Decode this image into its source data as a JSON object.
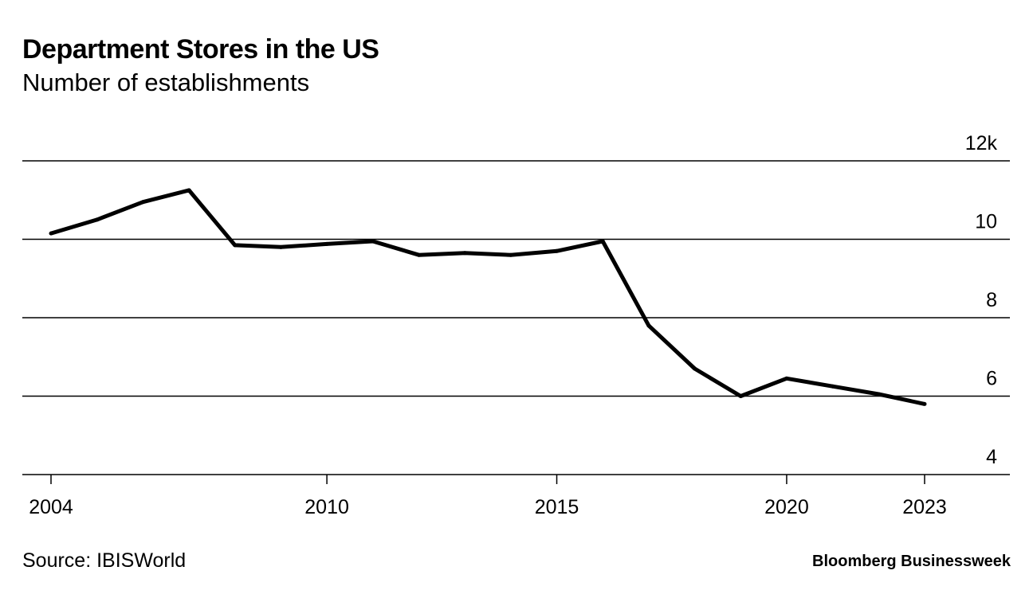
{
  "chart_data": {
    "type": "line",
    "title": "Department Stores in the US",
    "subtitle": "Number of establishments",
    "xlabel": "",
    "ylabel": "",
    "x": [
      2004,
      2005,
      2006,
      2007,
      2008,
      2009,
      2010,
      2011,
      2012,
      2013,
      2014,
      2015,
      2016,
      2017,
      2018,
      2019,
      2020,
      2021,
      2022,
      2023
    ],
    "series": [
      {
        "name": "Number of establishments",
        "values": [
          10.15,
          10.5,
          10.95,
          11.25,
          9.85,
          9.8,
          9.88,
          9.95,
          9.6,
          9.65,
          9.6,
          9.7,
          9.95,
          7.8,
          6.7,
          6.0,
          6.45,
          6.25,
          6.05,
          5.8
        ]
      }
    ],
    "ylim": [
      4,
      12
    ],
    "yticks": [
      4,
      6,
      8,
      10,
      12
    ],
    "ytick_labels": [
      "4",
      "6",
      "8",
      "10",
      "12k"
    ],
    "xticks": [
      2004,
      2010,
      2015,
      2020,
      2023
    ],
    "xtick_labels": [
      "2004",
      "2010",
      "2015",
      "2020",
      "2023"
    ],
    "grid": true
  },
  "footer": {
    "source": "Source: IBISWorld",
    "brand": "Bloomberg Businessweek"
  },
  "colors": {
    "line": "#000000",
    "grid": "#000000",
    "background": "#ffffff"
  }
}
